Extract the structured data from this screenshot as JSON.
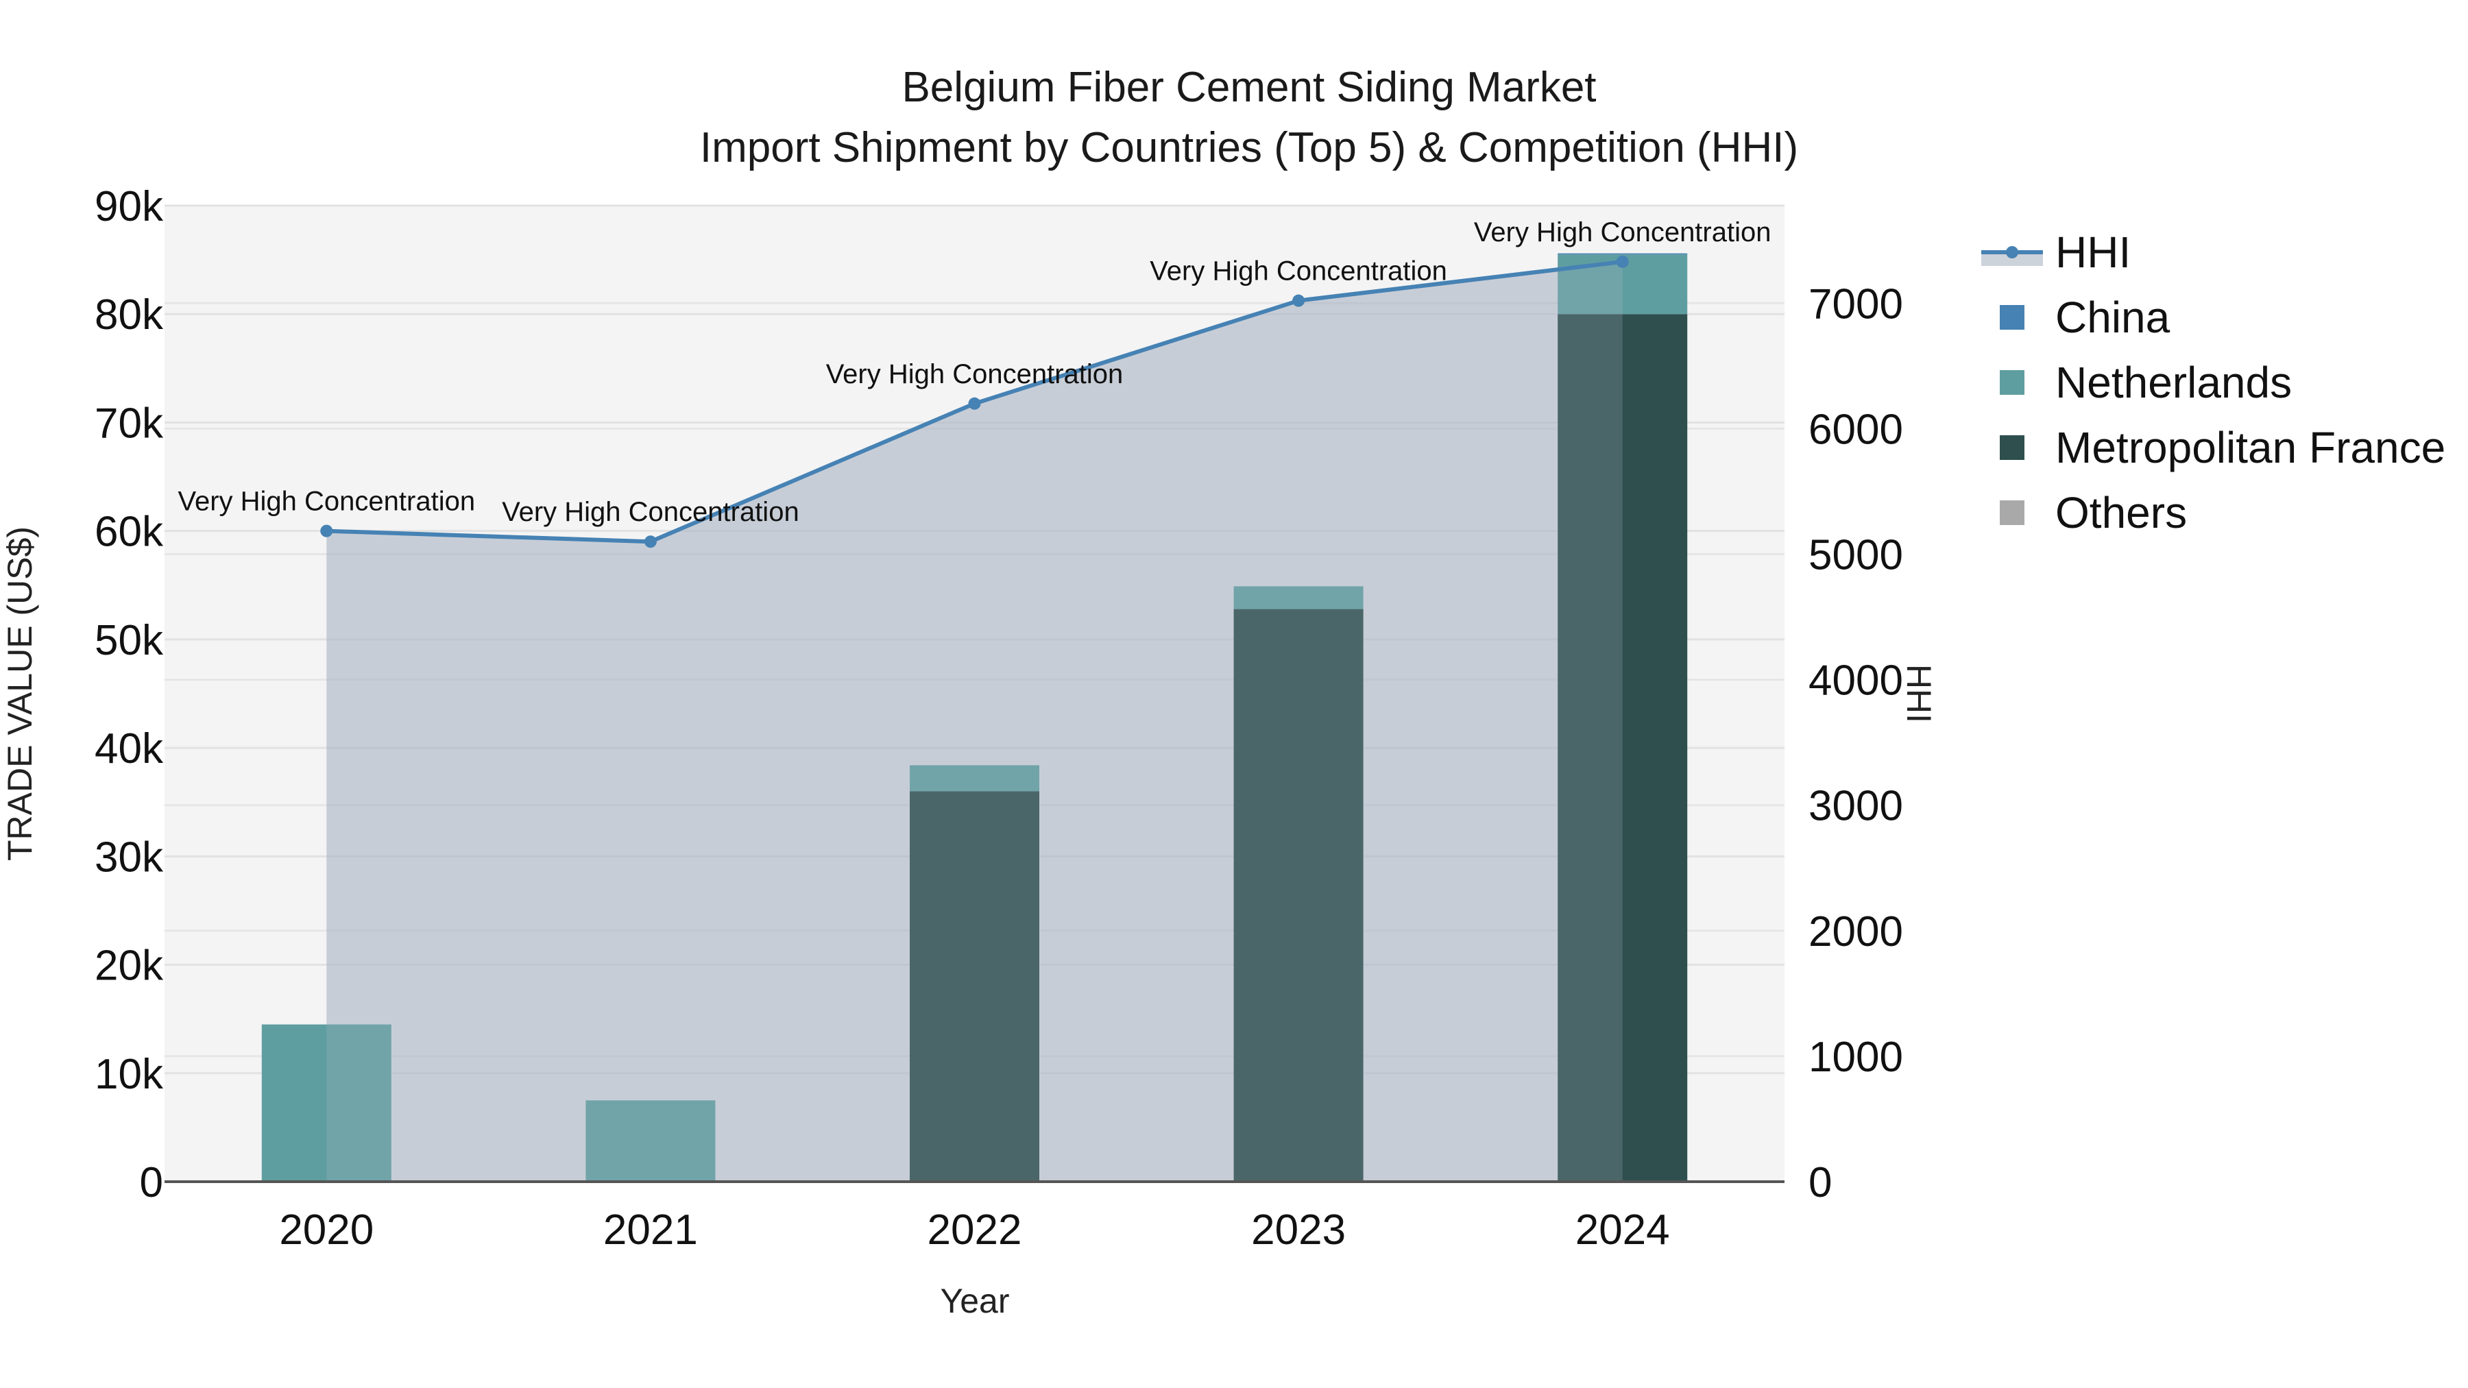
{
  "title": {
    "line1": "Belgium Fiber Cement Siding Market",
    "line2": "Import Shipment by Countries (Top 5) & Competition (HHI)"
  },
  "axes": {
    "x_title": "Year",
    "y_left_title": "TRADE VALUE (US$)",
    "y_right_title": "HHI",
    "y_left_ticks": [
      "0",
      "10k",
      "20k",
      "30k",
      "40k",
      "50k",
      "60k",
      "70k",
      "80k",
      "90k"
    ],
    "y_right_ticks": [
      "0",
      "1000",
      "2000",
      "3000",
      "4000",
      "5000",
      "6000",
      "7000"
    ]
  },
  "legend": [
    {
      "name": "HHI",
      "type": "line",
      "color": "#4682B4"
    },
    {
      "name": "China",
      "type": "bar",
      "color": "#4682B4"
    },
    {
      "name": "Netherlands",
      "type": "bar",
      "color": "#5F9EA0"
    },
    {
      "name": "Metropolitan France",
      "type": "bar",
      "color": "#2F4F4F"
    },
    {
      "name": "Others",
      "type": "bar",
      "color": "#A9A9A9"
    }
  ],
  "colors": {
    "plot_bg": "#F4F4F4",
    "grid": "#E4E4E4",
    "hhi_line": "#4682B4",
    "hhi_fill": "rgba(160,170,190,0.45)",
    "axis_line": "#555555"
  },
  "chart_data": {
    "type": "bar",
    "subtype": "stacked bar with secondary-axis line/area",
    "title": "Belgium Fiber Cement Siding Market — Import Shipment by Countries (Top 5) & Competition (HHI)",
    "xlabel": "Year",
    "ylabel": "TRADE VALUE (US$)",
    "y2label": "HHI",
    "categories": [
      "2020",
      "2021",
      "2022",
      "2023",
      "2024"
    ],
    "ylim": [
      0,
      90000
    ],
    "y2lim": [
      0,
      7800
    ],
    "series": [
      {
        "name": "Metropolitan France",
        "type": "bar",
        "axis": "left",
        "color": "#2F4F4F",
        "values": [
          0,
          0,
          36000,
          52800,
          80000
        ]
      },
      {
        "name": "Netherlands",
        "type": "bar",
        "axis": "left",
        "color": "#5F9EA0",
        "values": [
          14500,
          7500,
          2400,
          2100,
          5500
        ]
      },
      {
        "name": "China",
        "type": "bar",
        "axis": "left",
        "color": "#4682B4",
        "values": [
          0,
          0,
          0,
          0,
          100
        ]
      },
      {
        "name": "Others",
        "type": "bar",
        "axis": "left",
        "color": "#A9A9A9",
        "values": [
          0,
          0,
          0,
          0,
          0
        ]
      },
      {
        "name": "HHI",
        "type": "line",
        "axis": "right",
        "color": "#4682B4",
        "values": [
          5185,
          5100,
          6200,
          7020,
          7330
        ]
      }
    ],
    "annotations": [
      {
        "x": "2020",
        "text": "Very High Concentration"
      },
      {
        "x": "2021",
        "text": "Very High Concentration"
      },
      {
        "x": "2022",
        "text": "Very High Concentration"
      },
      {
        "x": "2023",
        "text": "Very High Concentration"
      },
      {
        "x": "2024",
        "text": "Very High Concentration"
      }
    ],
    "grid": true,
    "legend_position": "right"
  }
}
